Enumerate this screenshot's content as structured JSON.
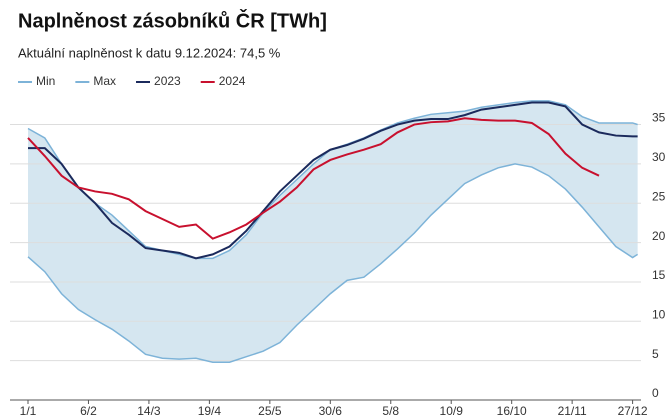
{
  "chart_data": {
    "type": "line",
    "title": "Naplněnost zásobníků ČR [TWh]",
    "subtitle": "Aktuální naplněnost k datu 9.12.2024: 74,5 %",
    "x": [
      1,
      11,
      21,
      31,
      41,
      51,
      61,
      71,
      81,
      91,
      101,
      111,
      121,
      131,
      141,
      151,
      161,
      171,
      181,
      191,
      201,
      211,
      221,
      231,
      241,
      251,
      261,
      271,
      281,
      291,
      301,
      311,
      321,
      331,
      341,
      351,
      361,
      364
    ],
    "series": [
      {
        "name": "Min",
        "color": "#7db3d8",
        "values": [
          18.2,
          16.3,
          13.5,
          11.5,
          10.2,
          9,
          7.5,
          5.8,
          5.3,
          5.2,
          5.3,
          4.8,
          4.8,
          5.5,
          6.2,
          7.3,
          9.5,
          11.5,
          13.5,
          15.2,
          15.6,
          17.3,
          19.2,
          21.2,
          23.5,
          25.5,
          27.5,
          28.6,
          29.5,
          30,
          29.6,
          28.5,
          26.8,
          24.5,
          22,
          19.5,
          18.1,
          18.5
        ]
      },
      {
        "name": "Max",
        "color": "#7db3d8",
        "values": [
          34.5,
          33.3,
          30,
          27,
          25,
          23.5,
          21.5,
          19.5,
          19,
          18.5,
          18,
          18,
          19,
          21,
          23.8,
          26,
          28,
          30,
          31.8,
          32.5,
          33.3,
          34.3,
          35.2,
          35.8,
          36.3,
          36.5,
          36.7,
          37.2,
          37.5,
          37.8,
          38,
          38,
          37.5,
          36,
          35.2,
          35.2,
          35.2,
          35
        ]
      },
      {
        "name": "2023",
        "color": "#1b2a5c",
        "values": [
          32,
          32,
          30,
          27,
          25,
          22.5,
          21,
          19.3,
          19,
          18.7,
          18,
          18.5,
          19.5,
          21.5,
          24,
          26.5,
          28.5,
          30.5,
          31.8,
          32.4,
          33.2,
          34.2,
          35,
          35.5,
          35.7,
          35.7,
          36.2,
          36.9,
          37.2,
          37.5,
          37.8,
          37.8,
          37.3,
          35,
          34,
          33.6,
          33.5,
          33.5
        ]
      },
      {
        "name": "2024",
        "color": "#c8102e",
        "values": [
          33.3,
          31,
          28.5,
          27,
          26.5,
          26.2,
          25.5,
          24,
          23,
          22,
          22.3,
          20.5,
          21.3,
          22.3,
          23.8,
          25.2,
          27,
          29.3,
          30.5,
          31.2,
          31.8,
          32.5,
          34,
          35,
          35.3,
          35.4,
          35.8,
          35.6,
          35.5,
          35.5,
          35.2,
          33.8,
          31.3,
          29.5,
          28.5,
          null,
          null,
          null
        ]
      }
    ],
    "band_color": "#d5e6f0",
    "xlim": [
      1,
      366
    ],
    "xticks": [
      {
        "value": 1,
        "label": "1/1"
      },
      {
        "value": 37,
        "label": "6/2"
      },
      {
        "value": 73,
        "label": "14/3"
      },
      {
        "value": 109,
        "label": "19/4"
      },
      {
        "value": 145,
        "label": "25/5"
      },
      {
        "value": 181,
        "label": "30/6"
      },
      {
        "value": 217,
        "label": "5/8"
      },
      {
        "value": 253,
        "label": "10/9"
      },
      {
        "value": 289,
        "label": "16/10"
      },
      {
        "value": 325,
        "label": "21/11"
      },
      {
        "value": 361,
        "label": "27/12"
      }
    ],
    "ylim": [
      0,
      38.5
    ],
    "yticks": [
      0,
      5,
      10,
      15,
      20,
      25,
      30,
      35
    ],
    "grid": true
  }
}
